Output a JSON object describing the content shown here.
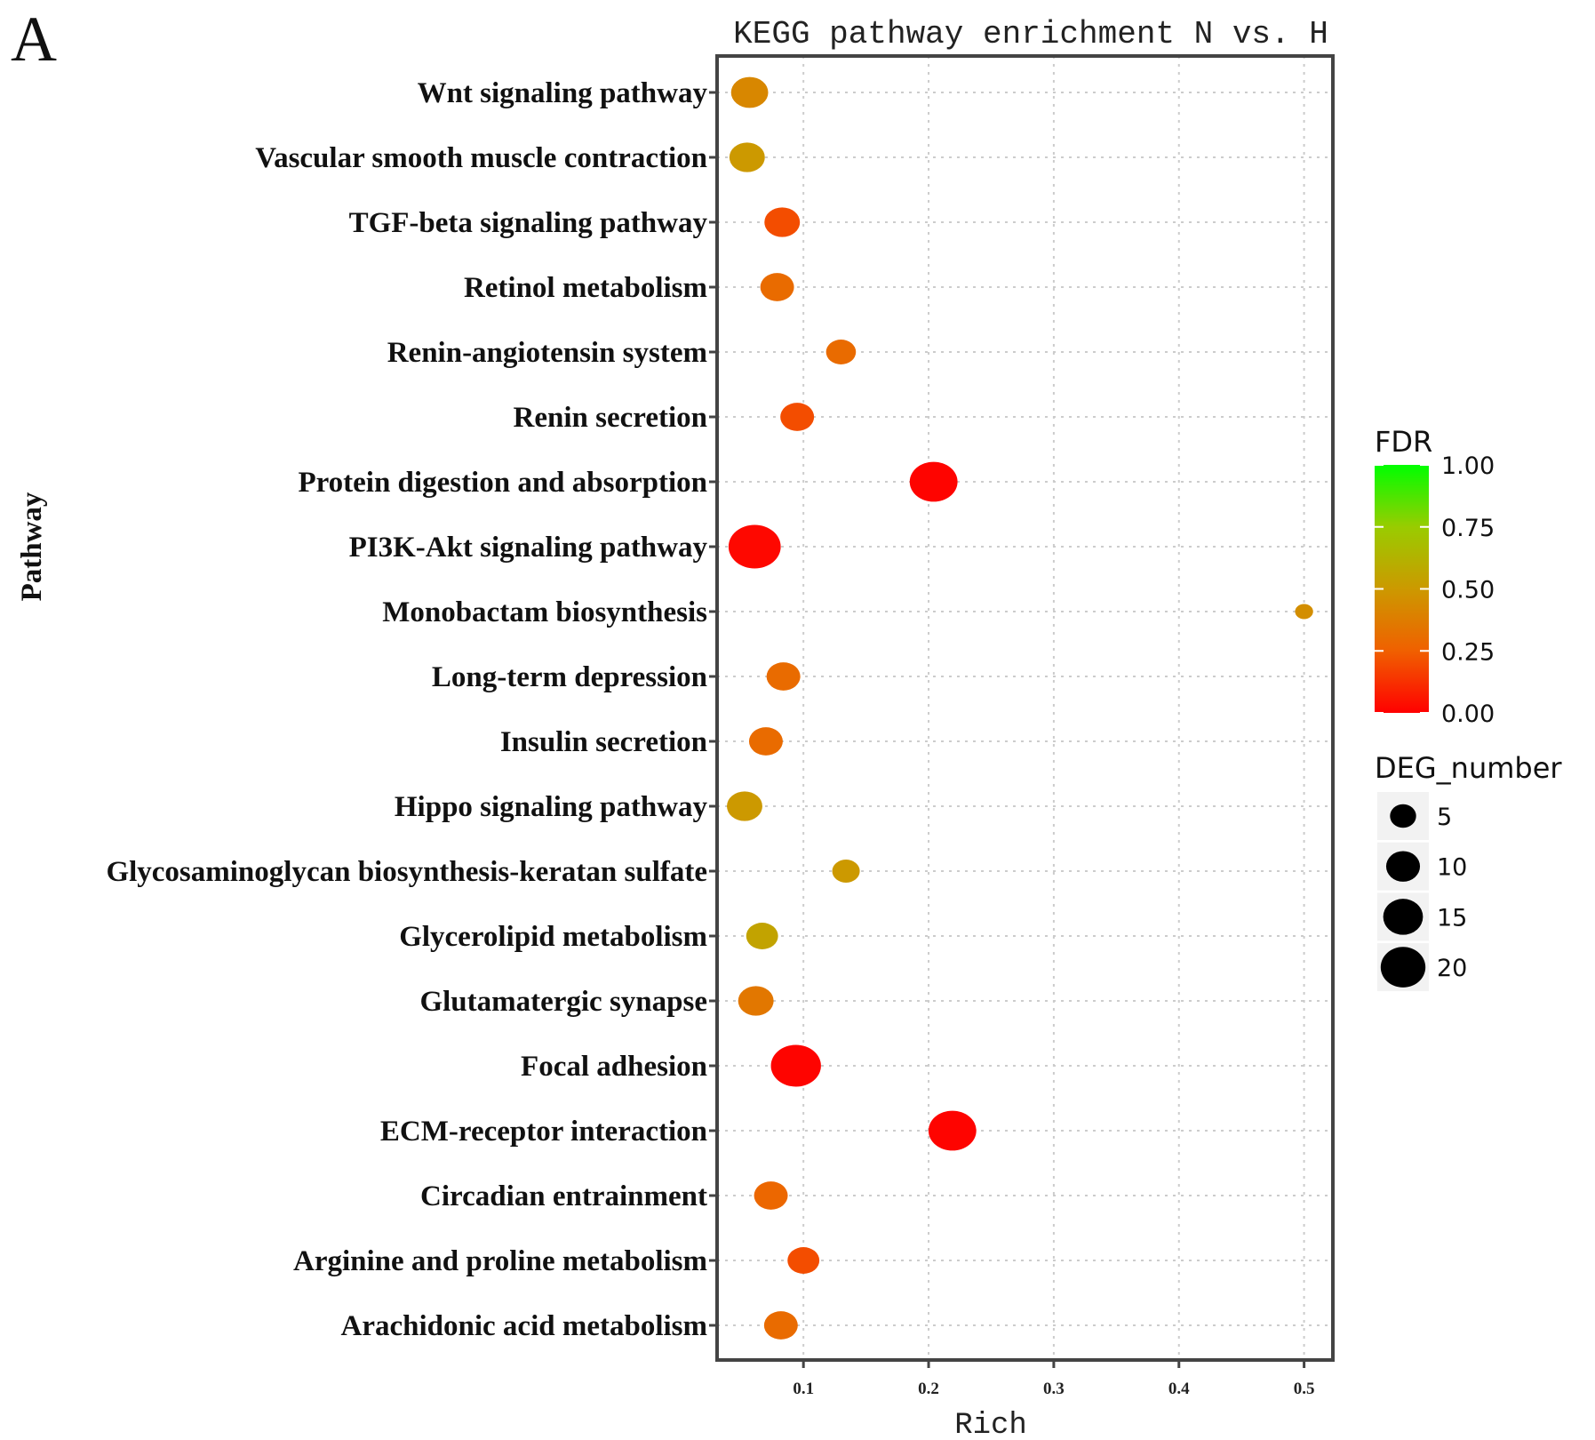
{
  "panel_letter": "A",
  "chart_data": {
    "type": "scatter",
    "title": "KEGG pathway enrichment N vs. H",
    "xlabel": "Rich",
    "ylabel": "Pathway",
    "xlim": [
      0.031,
      0.523
    ],
    "xticks": [
      "0.1",
      "0.2",
      "0.3",
      "0.4",
      "0.5"
    ],
    "grid": "dotted",
    "categories": [
      "Wnt signaling pathway",
      "Vascular smooth muscle contraction",
      "TGF-beta signaling pathway",
      "Retinol metabolism",
      "Renin-angiotensin system",
      "Renin secretion",
      "Protein digestion and absorption",
      "PI3K-Akt signaling pathway",
      "Monobactam biosynthesis",
      "Long-term depression",
      "Insulin secretion",
      "Hippo signaling pathway",
      "Glycosaminoglycan biosynthesis-keratan sulfate",
      "Glycerolipid metabolism",
      "Glutamatergic synapse",
      "Focal adhesion",
      "ECM-receptor interaction",
      "Circadian entrainment",
      "Arginine and proline metabolism",
      "Arachidonic acid metabolism"
    ],
    "rich": [
      0.057,
      0.055,
      0.083,
      0.079,
      0.13,
      0.095,
      0.204,
      0.061,
      0.5,
      0.084,
      0.07,
      0.053,
      0.134,
      0.067,
      0.062,
      0.094,
      0.219,
      0.074,
      0.1,
      0.082
    ],
    "deg_number": [
      9,
      8,
      8,
      7,
      5,
      7,
      17,
      21,
      1,
      7,
      7,
      8,
      4,
      6,
      8,
      19,
      17,
      7,
      6,
      7
    ],
    "fdr": [
      0.42,
      0.5,
      0.2,
      0.3,
      0.3,
      0.2,
      0.01,
      0.02,
      0.45,
      0.3,
      0.3,
      0.5,
      0.5,
      0.55,
      0.35,
      0.01,
      0.01,
      0.28,
      0.2,
      0.3
    ],
    "legend": {
      "color_title": "FDR",
      "color_ticks": [
        "1.00",
        "0.75",
        "0.50",
        "0.25",
        "0.00"
      ],
      "color_low": "#ff0000",
      "color_high": "#00ff00",
      "size_title": "DEG_number",
      "size_ticks": [
        "5",
        "10",
        "15",
        "20"
      ],
      "placement": "right"
    }
  }
}
